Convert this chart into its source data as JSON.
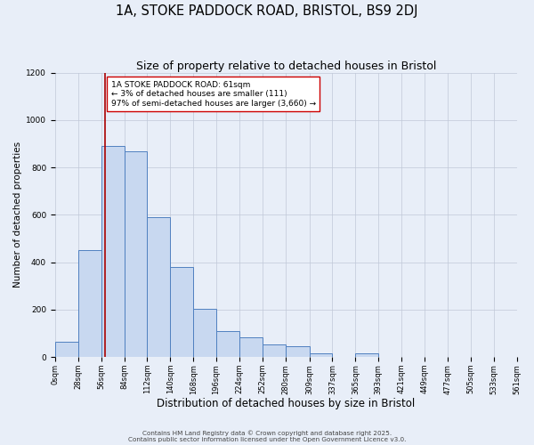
{
  "title": "1A, STOKE PADDOCK ROAD, BRISTOL, BS9 2DJ",
  "subtitle": "Size of property relative to detached houses in Bristol",
  "xlabel": "Distribution of detached houses by size in Bristol",
  "ylabel": "Number of detached properties",
  "bin_edges": [
    0,
    28,
    56,
    84,
    112,
    140,
    168,
    196,
    224,
    252,
    280,
    309,
    337,
    365,
    393,
    421,
    449,
    477,
    505,
    533,
    561
  ],
  "bar_heights": [
    65,
    450,
    890,
    870,
    590,
    380,
    205,
    110,
    85,
    55,
    45,
    15,
    0,
    15,
    0,
    0,
    0,
    0,
    0,
    0
  ],
  "bar_facecolor": "#c8d8f0",
  "bar_edgecolor": "#5080c0",
  "background_color": "#e8eef8",
  "grid_color": "#c0c8d8",
  "vline_x": 61,
  "vline_color": "#aa0000",
  "annotation_text": "1A STOKE PADDOCK ROAD: 61sqm\n← 3% of detached houses are smaller (111)\n97% of semi-detached houses are larger (3,660) →",
  "annotation_box_edgecolor": "#cc0000",
  "annotation_box_facecolor": "#ffffff",
  "ylim": [
    0,
    1200
  ],
  "xlim": [
    0,
    561
  ],
  "yticks": [
    0,
    200,
    400,
    600,
    800,
    1000,
    1200
  ],
  "footnote1": "Contains HM Land Registry data © Crown copyright and database right 2025.",
  "footnote2": "Contains public sector information licensed under the Open Government Licence v3.0.",
  "title_fontsize": 10.5,
  "subtitle_fontsize": 9,
  "xlabel_fontsize": 8.5,
  "ylabel_fontsize": 7.5,
  "tick_fontsize": 6,
  "annot_fontsize": 6.5,
  "footnote_fontsize": 5.2
}
